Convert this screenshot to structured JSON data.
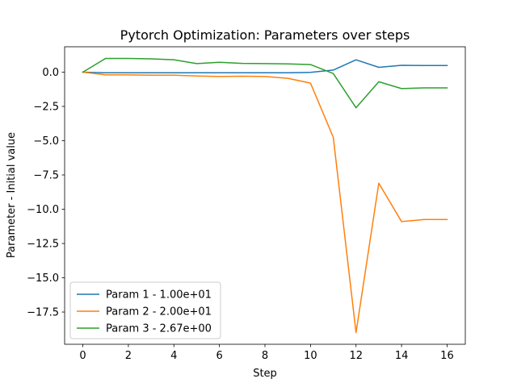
{
  "chart_data": {
    "type": "line",
    "title": "Pytorch Optimization: Parameters over steps",
    "xlabel": "Step",
    "ylabel": "Parameter - Initial value",
    "xlim": [
      -0.8,
      16.8
    ],
    "ylim": [
      -19.85,
      1.85
    ],
    "xticks": [
      0,
      2,
      4,
      6,
      8,
      10,
      12,
      14,
      16
    ],
    "yticks": [
      0.0,
      -2.5,
      -5.0,
      -7.5,
      -10.0,
      -12.5,
      -15.0,
      -17.5
    ],
    "ytick_labels": [
      "0.0",
      "−2.5",
      "−5.0",
      "−7.5",
      "−10.0",
      "−12.5",
      "−15.0",
      "−17.5"
    ],
    "grid": false,
    "legend_position": "lower-left",
    "x": [
      0,
      1,
      2,
      3,
      4,
      5,
      6,
      7,
      8,
      9,
      10,
      11,
      12,
      13,
      14,
      15,
      16
    ],
    "series": [
      {
        "name": "Param 1 - 1.00e+01",
        "color": "#1f77b4",
        "values": [
          0.0,
          -0.05,
          -0.05,
          -0.05,
          -0.05,
          -0.05,
          -0.05,
          -0.05,
          -0.05,
          -0.05,
          -0.02,
          0.15,
          0.9,
          0.35,
          0.5,
          0.48,
          0.48
        ]
      },
      {
        "name": "Param 2 - 2.00e+01",
        "color": "#ff7f0e",
        "values": [
          0.0,
          -0.2,
          -0.2,
          -0.22,
          -0.22,
          -0.28,
          -0.32,
          -0.3,
          -0.32,
          -0.45,
          -0.8,
          -4.75,
          -19.0,
          -8.1,
          -10.9,
          -10.75,
          -10.75
        ]
      },
      {
        "name": "Param 3 - 2.67e+00",
        "color": "#2ca02c",
        "values": [
          0.0,
          1.0,
          1.0,
          0.97,
          0.9,
          0.62,
          0.72,
          0.64,
          0.62,
          0.6,
          0.55,
          -0.1,
          -2.6,
          -0.7,
          -1.2,
          -1.15,
          -1.15
        ]
      }
    ]
  }
}
